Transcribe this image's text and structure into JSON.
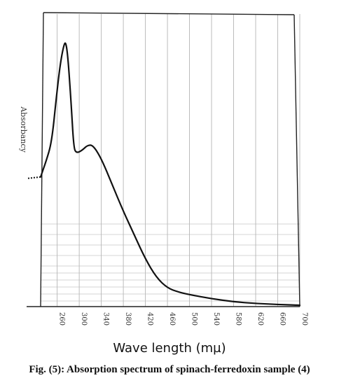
{
  "chart_data": {
    "type": "line",
    "title": "",
    "xlabel": "Wave length (mµ)",
    "ylabel": "Absorbancy",
    "xlim": [
      230,
      700
    ],
    "ylim": [
      0,
      1
    ],
    "x_ticks": [
      "260",
      "300",
      "340",
      "380",
      "420",
      "460",
      "500",
      "540",
      "580",
      "620",
      "660",
      "700"
    ],
    "grid": true,
    "legend": "none",
    "series": [
      {
        "color": "#111111",
        "points": [
          [
            230,
            0.49
          ],
          [
            240,
            0.55
          ],
          [
            250,
            0.62
          ],
          [
            258,
            0.78
          ],
          [
            265,
            0.91
          ],
          [
            272,
            0.99
          ],
          [
            276,
            1.0
          ],
          [
            280,
            0.93
          ],
          [
            285,
            0.78
          ],
          [
            290,
            0.6
          ],
          [
            295,
            0.58
          ],
          [
            305,
            0.59
          ],
          [
            315,
            0.61
          ],
          [
            325,
            0.61
          ],
          [
            340,
            0.56
          ],
          [
            360,
            0.46
          ],
          [
            380,
            0.36
          ],
          [
            400,
            0.27
          ],
          [
            420,
            0.18
          ],
          [
            440,
            0.11
          ],
          [
            460,
            0.07
          ],
          [
            480,
            0.055
          ],
          [
            500,
            0.045
          ],
          [
            540,
            0.03
          ],
          [
            580,
            0.018
          ],
          [
            620,
            0.012
          ],
          [
            660,
            0.008
          ],
          [
            700,
            0.005
          ]
        ]
      }
    ]
  },
  "caption": "Fig. (5): Absorption spectrum of spinach-ferredoxin sample (4)"
}
